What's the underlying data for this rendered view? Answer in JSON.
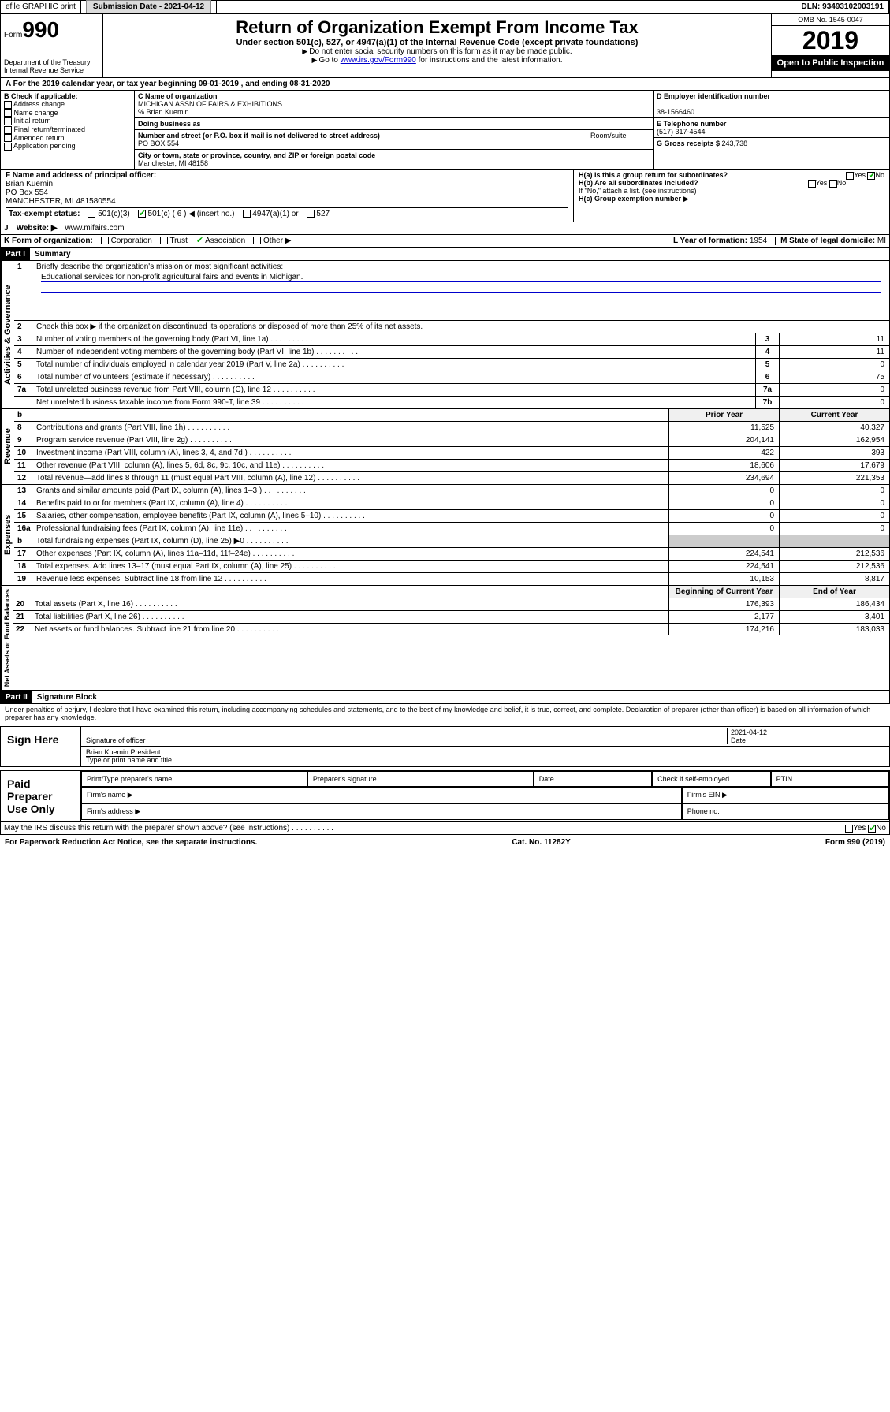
{
  "topbar": {
    "efile": "efile GRAPHIC print",
    "sub_label": "Submission Date - ",
    "sub_date": "2021-04-12",
    "dln": "DLN: 93493102003191"
  },
  "header": {
    "form_prefix": "Form",
    "form_num": "990",
    "dept": "Department of the Treasury\nInternal Revenue Service",
    "title": "Return of Organization Exempt From Income Tax",
    "sub": "Under section 501(c), 527, or 4947(a)(1) of the Internal Revenue Code (except private foundations)",
    "note1": "Do not enter social security numbers on this form as it may be made public.",
    "note2_pre": "Go to ",
    "note2_link": "www.irs.gov/Form990",
    "note2_post": " for instructions and the latest information.",
    "omb": "OMB No. 1545-0047",
    "year": "2019",
    "open": "Open to Public Inspection"
  },
  "period": {
    "text": "For the 2019 calendar year, or tax year beginning 09-01-2019   , and ending 08-31-2020"
  },
  "sectionB": {
    "hdr": "B Check if applicable:",
    "opts": [
      "Address change",
      "Name change",
      "Initial return",
      "Final return/terminated",
      "Amended return",
      "Application pending"
    ]
  },
  "sectionC": {
    "name_lbl": "C Name of organization",
    "name": "MICHIGAN ASSN OF FAIRS & EXHIBITIONS",
    "care": "% Brian Kuemin",
    "dba_lbl": "Doing business as",
    "addr_lbl": "Number and street (or P.O. box if mail is not delivered to street address)",
    "room_lbl": "Room/suite",
    "addr": "PO BOX 554",
    "city_lbl": "City or town, state or province, country, and ZIP or foreign postal code",
    "city": "Manchester, MI  48158"
  },
  "sectionD": {
    "lbl": "D Employer identification number",
    "val": "38-1566460"
  },
  "sectionE": {
    "lbl": "E Telephone number",
    "val": "(517) 317-4544"
  },
  "sectionG": {
    "lbl": "G Gross receipts $ ",
    "val": "243,738"
  },
  "sectionF": {
    "lbl": "F  Name and address of principal officer:",
    "name": "Brian Kuemin",
    "addr1": "PO Box 554",
    "addr2": "MANCHESTER, MI  481580554"
  },
  "sectionH": {
    "a": "H(a)  Is this a group return for subordinates?",
    "b": "H(b)  Are all subordinates included?",
    "b_note": "If \"No,\" attach a list. (see instructions)",
    "c": "H(c)  Group exemption number ▶"
  },
  "sectionI": {
    "lbl": "Tax-exempt status:",
    "opts": [
      "501(c)(3)",
      "501(c) ( 6 ) ◀ (insert no.)",
      "4947(a)(1) or",
      "527"
    ]
  },
  "sectionJ": {
    "lbl": "Website: ▶",
    "val": "www.mifairs.com"
  },
  "sectionK": {
    "lbl": "K Form of organization:",
    "opts": [
      "Corporation",
      "Trust",
      "Association",
      "Other ▶"
    ]
  },
  "sectionL": {
    "lbl": "L Year of formation: ",
    "val": "1954"
  },
  "sectionM": {
    "lbl": "M State of legal domicile: ",
    "val": "MI"
  },
  "part1": {
    "hdr": "Part I",
    "title": "Summary",
    "l1": "Briefly describe the organization's mission or most significant activities:",
    "mission": "Educational services for non-profit agricultural fairs and events in Michigan.",
    "l2": "Check this box ▶       if the organization discontinued its operations or disposed of more than 25% of its net assets.",
    "rows_gov": [
      {
        "n": "3",
        "d": "Number of voting members of the governing body (Part VI, line 1a)",
        "b": "3",
        "v": "11"
      },
      {
        "n": "4",
        "d": "Number of independent voting members of the governing body (Part VI, line 1b)",
        "b": "4",
        "v": "11"
      },
      {
        "n": "5",
        "d": "Total number of individuals employed in calendar year 2019 (Part V, line 2a)",
        "b": "5",
        "v": "0"
      },
      {
        "n": "6",
        "d": "Total number of volunteers (estimate if necessary)",
        "b": "6",
        "v": "75"
      },
      {
        "n": "7a",
        "d": "Total unrelated business revenue from Part VIII, column (C), line 12",
        "b": "7a",
        "v": "0"
      },
      {
        "n": "",
        "d": "Net unrelated business taxable income from Form 990-T, line 39",
        "b": "7b",
        "v": "0"
      }
    ],
    "col_prior": "Prior Year",
    "col_curr": "Current Year",
    "rows_rev": [
      {
        "n": "8",
        "d": "Contributions and grants (Part VIII, line 1h)",
        "p": "11,525",
        "c": "40,327"
      },
      {
        "n": "9",
        "d": "Program service revenue (Part VIII, line 2g)",
        "p": "204,141",
        "c": "162,954"
      },
      {
        "n": "10",
        "d": "Investment income (Part VIII, column (A), lines 3, 4, and 7d )",
        "p": "422",
        "c": "393"
      },
      {
        "n": "11",
        "d": "Other revenue (Part VIII, column (A), lines 5, 6d, 8c, 9c, 10c, and 11e)",
        "p": "18,606",
        "c": "17,679"
      },
      {
        "n": "12",
        "d": "Total revenue—add lines 8 through 11 (must equal Part VIII, column (A), line 12)",
        "p": "234,694",
        "c": "221,353"
      }
    ],
    "rows_exp": [
      {
        "n": "13",
        "d": "Grants and similar amounts paid (Part IX, column (A), lines 1–3 )",
        "p": "0",
        "c": "0"
      },
      {
        "n": "14",
        "d": "Benefits paid to or for members (Part IX, column (A), line 4)",
        "p": "0",
        "c": "0"
      },
      {
        "n": "15",
        "d": "Salaries, other compensation, employee benefits (Part IX, column (A), lines 5–10)",
        "p": "0",
        "c": "0"
      },
      {
        "n": "16a",
        "d": "Professional fundraising fees (Part IX, column (A), line 11e)",
        "p": "0",
        "c": "0"
      },
      {
        "n": "b",
        "d": "Total fundraising expenses (Part IX, column (D), line 25) ▶0",
        "p": "",
        "c": "",
        "gray": true
      },
      {
        "n": "17",
        "d": "Other expenses (Part IX, column (A), lines 11a–11d, 11f–24e)",
        "p": "224,541",
        "c": "212,536"
      },
      {
        "n": "18",
        "d": "Total expenses. Add lines 13–17 (must equal Part IX, column (A), line 25)",
        "p": "224,541",
        "c": "212,536"
      },
      {
        "n": "19",
        "d": "Revenue less expenses. Subtract line 18 from line 12",
        "p": "10,153",
        "c": "8,817"
      }
    ],
    "col_beg": "Beginning of Current Year",
    "col_end": "End of Year",
    "rows_net": [
      {
        "n": "20",
        "d": "Total assets (Part X, line 16)",
        "p": "176,393",
        "c": "186,434"
      },
      {
        "n": "21",
        "d": "Total liabilities (Part X, line 26)",
        "p": "2,177",
        "c": "3,401"
      },
      {
        "n": "22",
        "d": "Net assets or fund balances. Subtract line 21 from line 20",
        "p": "174,216",
        "c": "183,033"
      }
    ]
  },
  "tabs": {
    "gov": "Activities & Governance",
    "rev": "Revenue",
    "exp": "Expenses",
    "net": "Net Assets or Fund Balances"
  },
  "part2": {
    "hdr": "Part II",
    "title": "Signature Block",
    "decl": "Under penalties of perjury, I declare that I have examined this return, including accompanying schedules and statements, and to the best of my knowledge and belief, it is true, correct, and complete. Declaration of preparer (other than officer) is based on all information of which preparer has any knowledge.",
    "sign_here": "Sign Here",
    "sig_officer": "Signature of officer",
    "date": "2021-04-12",
    "date_lbl": "Date",
    "officer_name": "Brian Kuemin  President",
    "type_lbl": "Type or print name and title",
    "paid": "Paid Preparer Use Only",
    "prep_name": "Print/Type preparer's name",
    "prep_sig": "Preparer's signature",
    "prep_date": "Date",
    "check_self": "Check         if self-employed",
    "ptin": "PTIN",
    "firm_name": "Firm's name   ▶",
    "firm_ein": "Firm's EIN ▶",
    "firm_addr": "Firm's address ▶",
    "phone": "Phone no.",
    "discuss": "May the IRS discuss this return with the preparer shown above? (see instructions)"
  },
  "footer": {
    "left": "For Paperwork Reduction Act Notice, see the separate instructions.",
    "mid": "Cat. No. 11282Y",
    "right": "Form 990 (2019)"
  },
  "yes": "Yes",
  "no": "No"
}
